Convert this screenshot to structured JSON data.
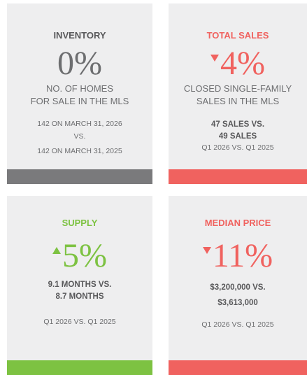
{
  "cards": [
    {
      "title": "INVENTORY",
      "color": "#58585a",
      "figure": "0%",
      "figure_color": "#6d6e70",
      "bar_color": "#7a7a7c",
      "description": [
        "NO. OF HOMES",
        "FOR SALE IN THE MLS"
      ],
      "details": [
        "142 ON MARCH 31, 2026",
        "VS.",
        "142 ON MARCH 31, 2025"
      ]
    },
    {
      "title": "TOTAL SALES",
      "color": "#f0625f",
      "figure": "4%",
      "figure_color": "#f0625f",
      "bar_color": "#f0625f",
      "description": [
        "CLOSED SINGLE-FAMILY",
        "SALES IN THE MLS"
      ],
      "highlight": [
        "47 SALES VS.",
        "49 SALES"
      ],
      "details": [
        "Q1 2026 VS. Q1 2025"
      ]
    },
    {
      "title": "SUPPLY",
      "color": "#7dc242",
      "figure": "5%",
      "figure_color": "#7dc242",
      "bar_color": "#7dc242",
      "highlight": [
        "9.1 MONTHS VS.",
        "8.7 MONTHS"
      ],
      "details": [
        "Q1 2026 VS. Q1 2025"
      ]
    },
    {
      "title": "MEDIAN PRICE",
      "color": "#f0625f",
      "figure": "11%",
      "figure_color": "#f0625f",
      "bar_color": "#f0625f",
      "highlight": [
        "$3,200,000 VS.",
        "$3,613,000"
      ],
      "details": [
        "Q1 2026 VS. Q1 2025"
      ]
    }
  ]
}
